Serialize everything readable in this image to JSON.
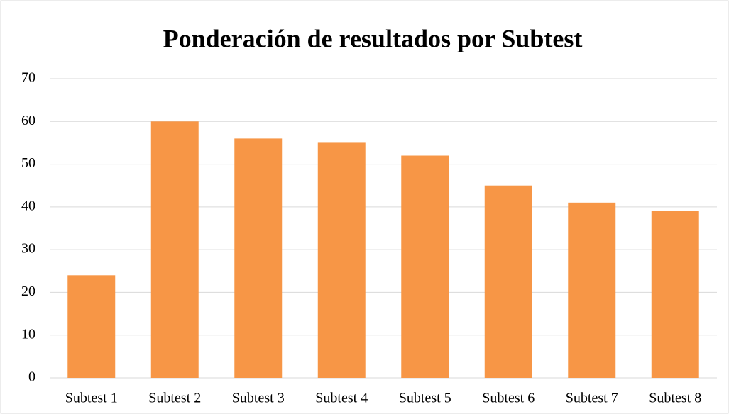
{
  "chart_data": {
    "type": "bar",
    "title": "Ponderación de resultados por Subtest",
    "categories": [
      "Subtest 1",
      "Subtest 2",
      "Subtest 3",
      "Subtest 4",
      "Subtest 5",
      "Subtest 6",
      "Subtest 7",
      "Subtest 8"
    ],
    "values": [
      24,
      60,
      56,
      55,
      52,
      45,
      41,
      39
    ],
    "color": "#f79646",
    "ylim": [
      0,
      70
    ],
    "yticks": [
      0,
      10,
      20,
      30,
      40,
      50,
      60,
      70
    ],
    "grid": true
  }
}
